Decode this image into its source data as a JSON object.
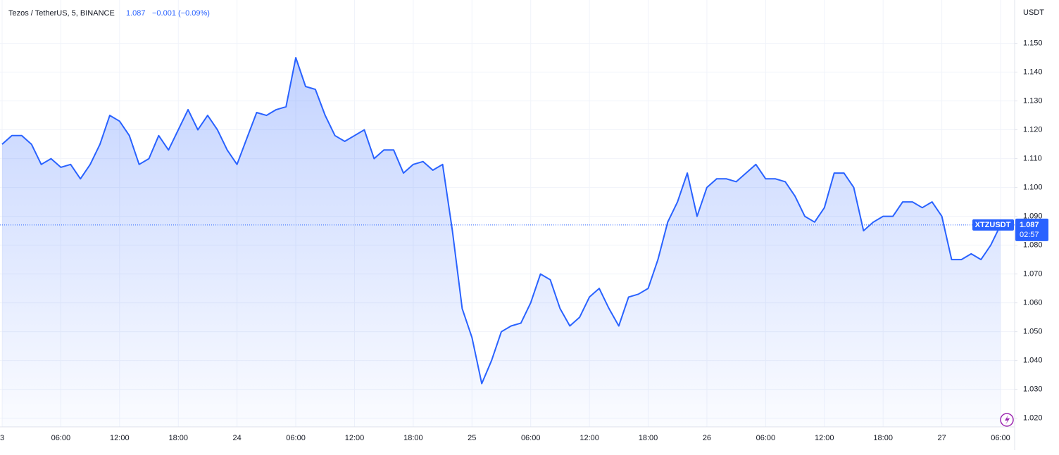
{
  "chart_data": {
    "type": "area",
    "title": "Tezos / TetherUS, 5, BINANCE",
    "last": 1.087,
    "change": "−0.001 (−0.09%)",
    "unit": "USDT",
    "price_label": {
      "symbol": "XTZUSDT",
      "value": 1.087,
      "countdown": "02:57"
    },
    "color": "#2962ff",
    "grid": true,
    "categories": [
      "3",
      null,
      null,
      null,
      null,
      null,
      "06:00",
      null,
      null,
      null,
      null,
      null,
      "12:00",
      null,
      null,
      null,
      null,
      null,
      "18:00",
      null,
      null,
      null,
      null,
      null,
      "24",
      null,
      null,
      null,
      null,
      null,
      "06:00",
      null,
      null,
      null,
      null,
      null,
      "12:00",
      null,
      null,
      null,
      null,
      null,
      "18:00",
      null,
      null,
      null,
      null,
      null,
      "25",
      null,
      null,
      null,
      null,
      null,
      "06:00",
      null,
      null,
      null,
      null,
      null,
      "12:00",
      null,
      null,
      null,
      null,
      null,
      "18:00",
      null,
      null,
      null,
      null,
      null,
      "26",
      null,
      null,
      null,
      null,
      null,
      "06:00",
      null,
      null,
      null,
      null,
      null,
      "12:00",
      null,
      null,
      null,
      null,
      null,
      "18:00",
      null,
      null,
      null,
      null,
      null,
      "27",
      null,
      null,
      null,
      null,
      null,
      "06:00"
    ],
    "values": [
      1.115,
      1.118,
      1.118,
      1.115,
      1.108,
      1.11,
      1.107,
      1.108,
      1.103,
      1.108,
      1.115,
      1.125,
      1.123,
      1.118,
      1.108,
      1.11,
      1.118,
      1.113,
      1.12,
      1.127,
      1.12,
      1.125,
      1.12,
      1.113,
      1.108,
      1.117,
      1.126,
      1.125,
      1.127,
      1.128,
      1.145,
      1.135,
      1.134,
      1.125,
      1.118,
      1.116,
      1.118,
      1.12,
      1.11,
      1.113,
      1.113,
      1.105,
      1.108,
      1.109,
      1.106,
      1.108,
      1.085,
      1.058,
      1.048,
      1.032,
      1.04,
      1.05,
      1.052,
      1.053,
      1.06,
      1.07,
      1.068,
      1.058,
      1.052,
      1.055,
      1.062,
      1.065,
      1.058,
      1.052,
      1.062,
      1.063,
      1.065,
      1.075,
      1.088,
      1.095,
      1.105,
      1.09,
      1.1,
      1.103,
      1.103,
      1.102,
      1.105,
      1.108,
      1.103,
      1.103,
      1.102,
      1.097,
      1.09,
      1.088,
      1.093,
      1.105,
      1.105,
      1.1,
      1.085,
      1.088,
      1.09,
      1.09,
      1.095,
      1.095,
      1.093,
      1.095,
      1.09,
      1.075,
      1.075,
      1.077,
      1.075,
      1.08,
      1.087
    ],
    "ylim": [
      1.017,
      1.165
    ],
    "yticks": [
      {
        "value": 1.02,
        "label": "1.020"
      },
      {
        "value": 1.03,
        "label": "1.030"
      },
      {
        "value": 1.04,
        "label": "1.040"
      },
      {
        "value": 1.05,
        "label": "1.050"
      },
      {
        "value": 1.06,
        "label": "1.060"
      },
      {
        "value": 1.07,
        "label": "1.070"
      },
      {
        "value": 1.08,
        "label": "1.080"
      },
      {
        "value": 1.09,
        "label": "1.090"
      },
      {
        "value": 1.1,
        "label": "1.100"
      },
      {
        "value": 1.11,
        "label": "1.110"
      },
      {
        "value": 1.12,
        "label": "1.120"
      },
      {
        "value": 1.13,
        "label": "1.130"
      },
      {
        "value": 1.14,
        "label": "1.140"
      },
      {
        "value": 1.15,
        "label": "1.150"
      }
    ]
  }
}
